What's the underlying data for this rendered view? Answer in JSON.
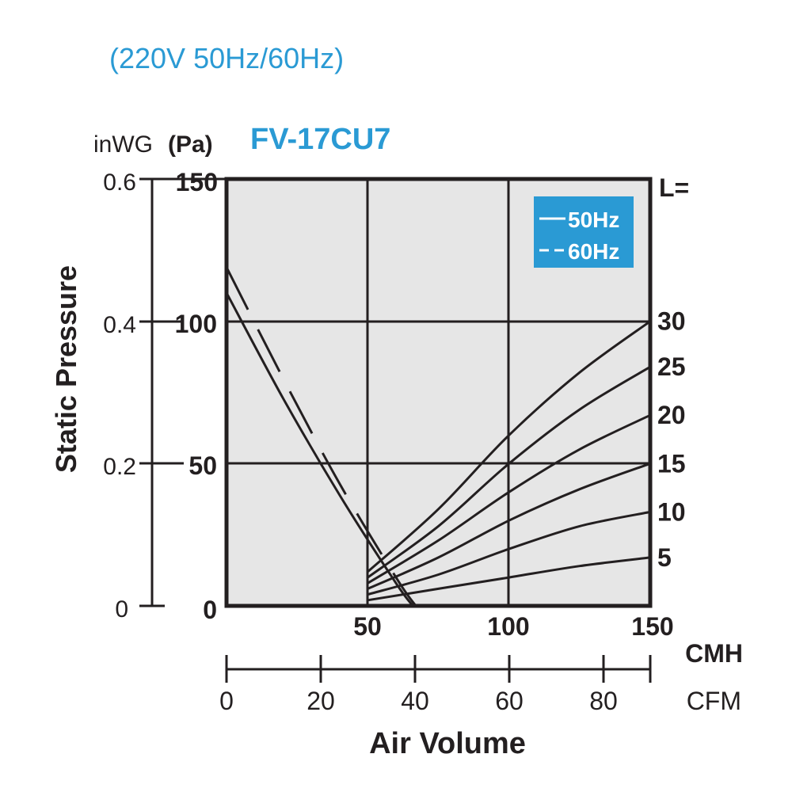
{
  "subtitle": "(220V 50Hz/60Hz)",
  "model": "FV-17CU7",
  "colors": {
    "accent": "#2a9ad4",
    "plot_bg": "#e6e6e6",
    "ink": "#231f20",
    "legend_text": "#ffffff"
  },
  "y_axis": {
    "title": "Static Pressure",
    "unit_in": "inWG",
    "unit_pa": "(Pa)",
    "ticks_in": [
      "0.6",
      "0.4",
      "0.2",
      "0"
    ],
    "ticks_pa": [
      "150",
      "100",
      "50",
      "0"
    ]
  },
  "x_axis": {
    "title": "Air Volume",
    "unit_cmh": "CMH",
    "unit_cfm": "CFM",
    "ticks_cmh": [
      "50",
      "100",
      "150"
    ],
    "ticks_cfm": [
      "0",
      "20",
      "40",
      "60",
      "80"
    ]
  },
  "legend": {
    "solid": "50Hz",
    "dashed": "60Hz"
  },
  "l_header": "L=",
  "chart_data": {
    "type": "line",
    "x_unit": "CMH",
    "y_unit": "Pa",
    "xlim": [
      0,
      150
    ],
    "ylim": [
      0,
      150
    ],
    "grid": true,
    "legend_position": "top-right",
    "fan_curves": [
      {
        "name": "50Hz",
        "style": "solid",
        "points": [
          [
            0,
            110
          ],
          [
            20,
            73
          ],
          [
            40,
            39
          ],
          [
            60,
            8
          ],
          [
            66,
            0
          ]
        ]
      },
      {
        "name": "60Hz",
        "style": "dashed",
        "points": [
          [
            0,
            119
          ],
          [
            20,
            80
          ],
          [
            40,
            43
          ],
          [
            60,
            10
          ],
          [
            67,
            0
          ]
        ]
      }
    ],
    "system_curves": [
      {
        "label": "30",
        "points": [
          [
            50,
            12
          ],
          [
            75,
            34
          ],
          [
            100,
            60
          ],
          [
            125,
            82
          ],
          [
            150,
            100
          ]
        ]
      },
      {
        "label": "25",
        "points": [
          [
            50,
            10
          ],
          [
            75,
            28
          ],
          [
            100,
            50
          ],
          [
            125,
            69
          ],
          [
            150,
            84
          ]
        ]
      },
      {
        "label": "20",
        "points": [
          [
            50,
            8
          ],
          [
            75,
            23
          ],
          [
            100,
            40
          ],
          [
            125,
            55
          ],
          [
            150,
            67
          ]
        ]
      },
      {
        "label": "15",
        "points": [
          [
            50,
            6
          ],
          [
            75,
            17
          ],
          [
            100,
            30
          ],
          [
            125,
            41
          ],
          [
            150,
            50
          ]
        ]
      },
      {
        "label": "10",
        "points": [
          [
            50,
            4
          ],
          [
            75,
            11
          ],
          [
            100,
            20
          ],
          [
            125,
            28
          ],
          [
            150,
            33
          ]
        ]
      },
      {
        "label": "5",
        "points": [
          [
            50,
            2
          ],
          [
            75,
            6
          ],
          [
            100,
            10
          ],
          [
            125,
            14
          ],
          [
            150,
            17
          ]
        ]
      }
    ]
  }
}
